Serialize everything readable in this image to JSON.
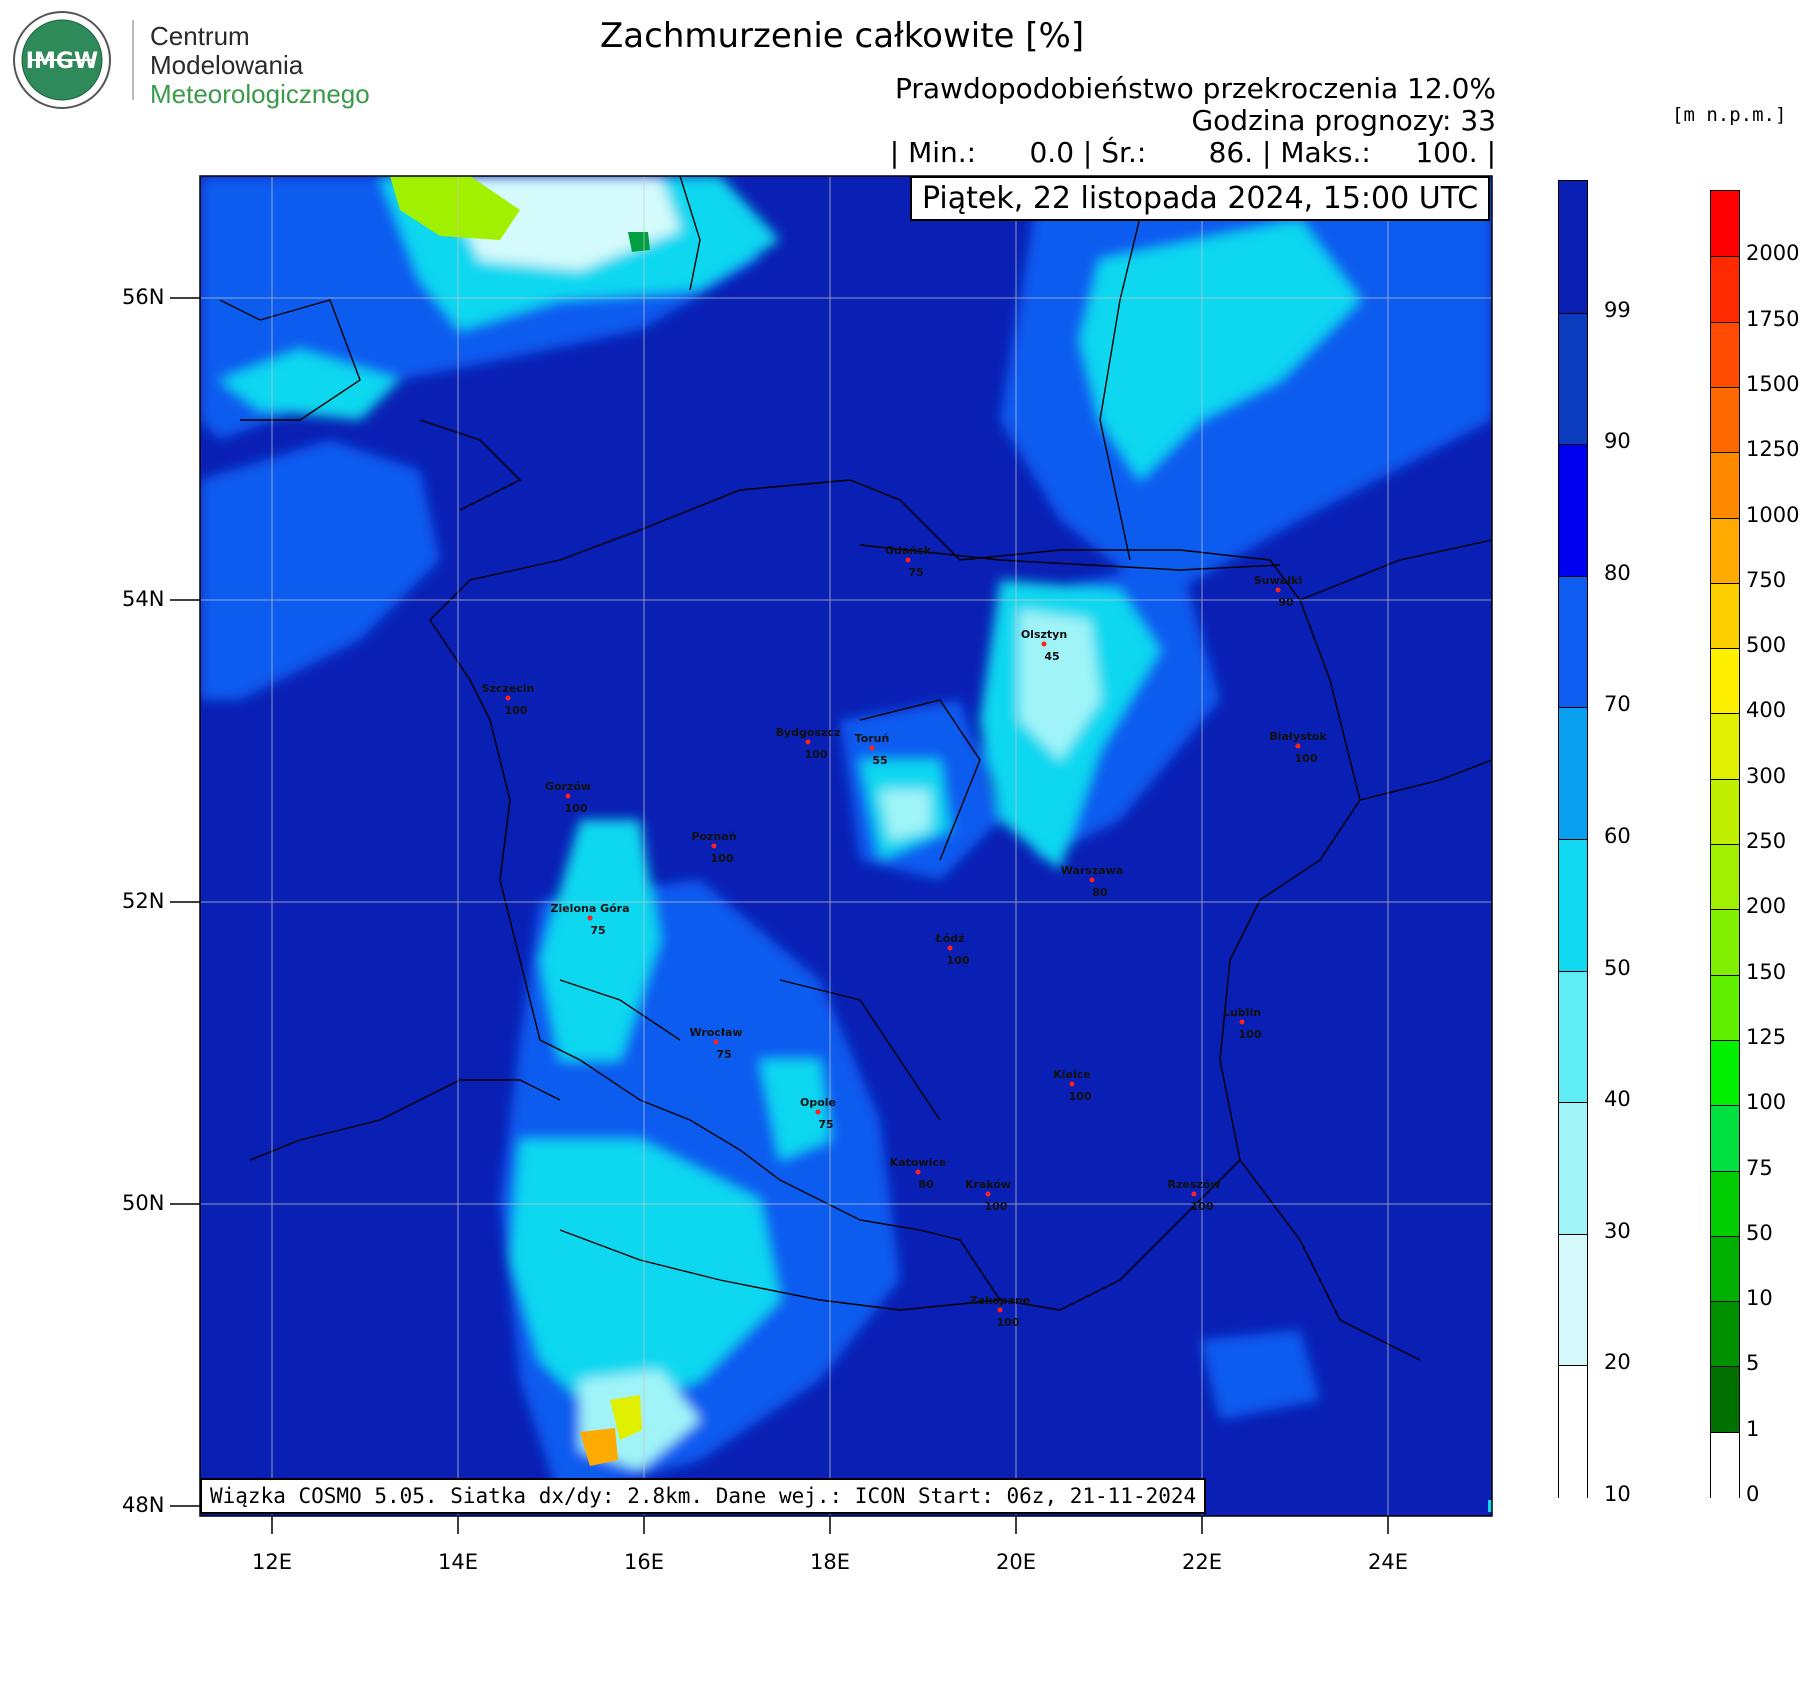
{
  "logo": {
    "badge_text": "IMGW",
    "line1": "Centrum",
    "line2": "Modelowania",
    "line3": "Meteorologicznego"
  },
  "header": {
    "title": "Zachmurzenie całkowite [%]",
    "probability": "Prawdopodobieństwo przekroczenia 12.0%",
    "forecast_hour": "Godzina prognozy: 33",
    "stats": "| Min.:      0.0 | Śr.:       86. | Maks.:     100. |",
    "date": "Piątek, 22 listopada 2024, 15:00 UTC"
  },
  "footer": {
    "model_info": "Wiązka COSMO 5.05. Siatka dx/dy: 2.8km. Dane wej.: ICON Start: 06z, 21-11-2024"
  },
  "axes": {
    "lat_labels": [
      "56N",
      "54N",
      "52N",
      "50N",
      "48N"
    ],
    "lon_labels": [
      "12E",
      "14E",
      "16E",
      "18E",
      "20E",
      "22E",
      "24E"
    ]
  },
  "cloud_scale": {
    "ticks": [
      "99",
      "90",
      "80",
      "70",
      "60",
      "50",
      "40",
      "30",
      "20",
      "10"
    ],
    "colors": [
      "#0a1fb4",
      "#0b3cbe",
      "#0000f0",
      "#0f5cf0",
      "#0aa0f0",
      "#10d8f0",
      "#60ecf4",
      "#a0f4f8",
      "#d4fafc",
      "#ffffff"
    ]
  },
  "terrain_scale": {
    "unit": "[m n.p.m.]",
    "ticks": [
      "2000",
      "1750",
      "1500",
      "1250",
      "1000",
      "750",
      "500",
      "400",
      "300",
      "250",
      "200",
      "150",
      "125",
      "100",
      "75",
      "50",
      "10",
      "5",
      "1",
      "0"
    ],
    "colors": [
      "#ff0000",
      "#ff2a00",
      "#ff4a00",
      "#ff6a00",
      "#ff8a00",
      "#ffaa00",
      "#ffd000",
      "#fff000",
      "#e0f000",
      "#c0f000",
      "#a0f000",
      "#80f000",
      "#60f000",
      "#00f000",
      "#00e040",
      "#00cc00",
      "#00b000",
      "#009000",
      "#007000",
      "#ffffff"
    ]
  },
  "cities": [
    {
      "name": "Gdańsk",
      "value": "75"
    },
    {
      "name": "Suwałki",
      "value": "90"
    },
    {
      "name": "Olsztyn",
      "value": "45"
    },
    {
      "name": "Szczecin",
      "value": "100"
    },
    {
      "name": "Bydgoszcz",
      "value": "100"
    },
    {
      "name": "Toruń",
      "value": "55"
    },
    {
      "name": "Białystok",
      "value": "100"
    },
    {
      "name": "Gorzów",
      "value": "100"
    },
    {
      "name": "Poznań",
      "value": "100"
    },
    {
      "name": "Warszawa",
      "value": "80"
    },
    {
      "name": "Zielona Góra",
      "value": "75"
    },
    {
      "name": "Łódź",
      "value": "100"
    },
    {
      "name": "Lublin",
      "value": "100"
    },
    {
      "name": "Wrocław",
      "value": "75"
    },
    {
      "name": "Kielce",
      "value": "100"
    },
    {
      "name": "Opole",
      "value": "75"
    },
    {
      "name": "Katowice",
      "value": "80"
    },
    {
      "name": "Kraków",
      "value": "100"
    },
    {
      "name": "Rzeszów",
      "value": "100"
    },
    {
      "name": "Zakopane",
      "value": "100"
    }
  ]
}
